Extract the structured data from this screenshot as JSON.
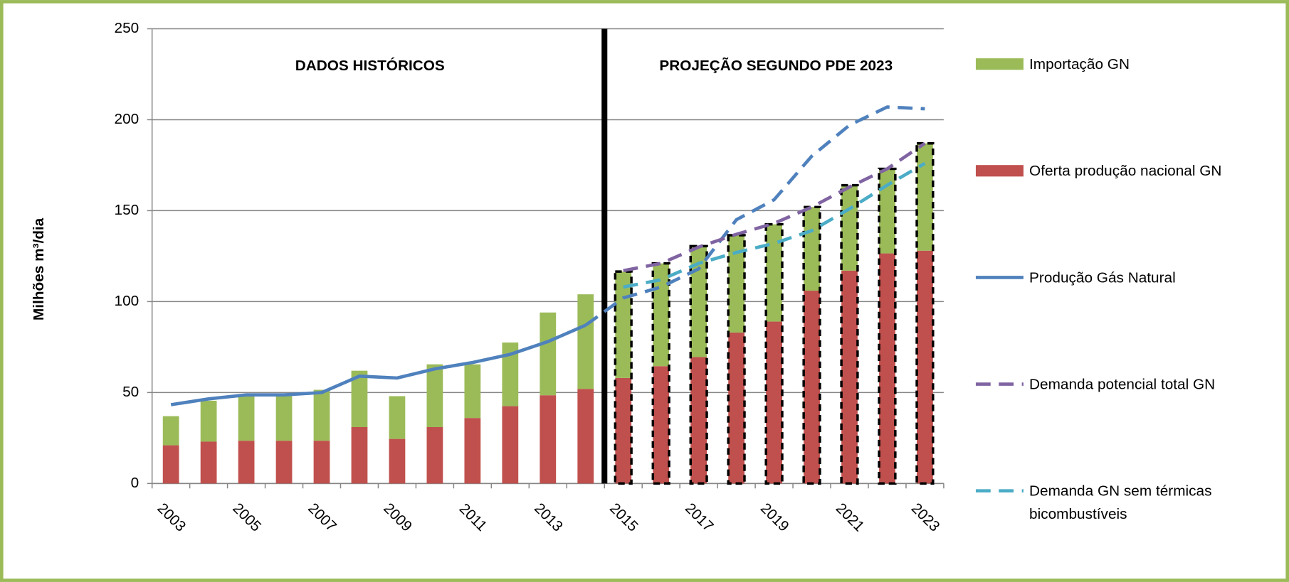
{
  "chart_data": {
    "type": "bar",
    "stacked": true,
    "annotations": [
      "DADOS HISTÓRICOS",
      "PROJEÇÃO SEGUNDO PDE 2023"
    ],
    "y_label": "Milhões m³/dia",
    "categories": [
      "2003",
      null,
      "2005",
      null,
      "2007",
      null,
      "2009",
      null,
      "2011",
      null,
      "2013",
      null,
      "2015",
      null,
      "2017",
      null,
      "2019",
      null,
      "2021",
      null,
      "2023"
    ],
    "ylim": [
      0,
      250
    ],
    "yticks": [
      0,
      50,
      100,
      150,
      200,
      250
    ],
    "grid": true,
    "legend": "right",
    "series": [
      {
        "name": "Importação GN",
        "kind": "bar",
        "color": "#9bbb59",
        "values": [
          16,
          22.5,
          25.5,
          25.5,
          28,
          31,
          23.5,
          34.5,
          29.5,
          35,
          45.5,
          52,
          58.5,
          56.5,
          61,
          53.5,
          53.5,
          46,
          47,
          46.5,
          59
        ]
      },
      {
        "name": "Oferta produção nacional GN",
        "kind": "bar",
        "color": "#c0504d",
        "values": [
          21,
          23,
          23.5,
          23.5,
          23.5,
          31,
          24.5,
          31,
          36,
          42.5,
          48.5,
          52,
          58,
          64.5,
          69.5,
          83,
          89,
          106,
          117,
          126.5,
          128
        ]
      },
      {
        "name": "Produção Gás Natural",
        "kind": "line",
        "color": "#4f81bd",
        "values": [
          43.3,
          46.5,
          48.7,
          48.7,
          50,
          59,
          58,
          63,
          66.5,
          71,
          78,
          87,
          102,
          108,
          118,
          145,
          156,
          180,
          197,
          207,
          206
        ]
      },
      {
        "name": "Demanda potencial total GN",
        "kind": "line",
        "dashed": true,
        "color": "#8064a2",
        "values": [
          null,
          null,
          null,
          null,
          null,
          null,
          null,
          null,
          null,
          null,
          null,
          null,
          117,
          121,
          130,
          137,
          143,
          152,
          163,
          173,
          187
        ]
      },
      {
        "name": "Demanda GN sem térmicas bicombustíveis",
        "kind": "line",
        "dashed": true,
        "color": "#4bacc6",
        "values": [
          null,
          null,
          null,
          null,
          null,
          null,
          null,
          null,
          null,
          null,
          null,
          null,
          108,
          112,
          121,
          127,
          132,
          139,
          151,
          164,
          176
        ]
      }
    ]
  }
}
